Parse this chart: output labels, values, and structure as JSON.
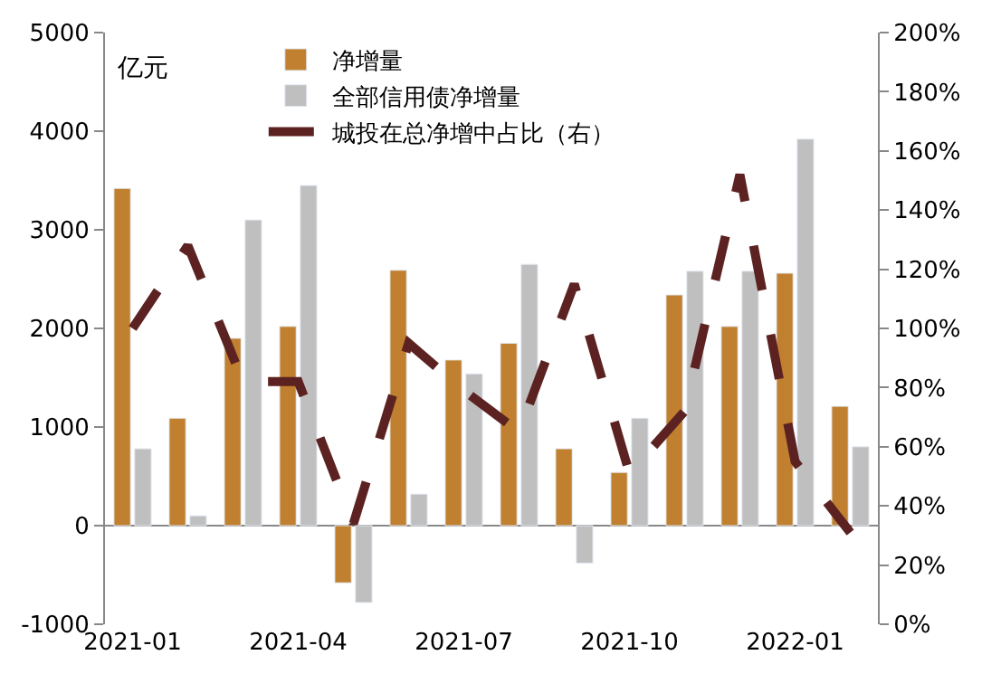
{
  "chart_data": {
    "type": "bar",
    "ylabel": "亿元",
    "categories": [
      "2021-01",
      null,
      null,
      "2021-04",
      null,
      null,
      "2021-07",
      null,
      null,
      "2021-10",
      null,
      null,
      "2022-01",
      null
    ],
    "series": [
      {
        "name": "净增量",
        "color": "#c0802f",
        "values": [
          3420,
          1090,
          1900,
          2020,
          -580,
          2590,
          1680,
          1850,
          780,
          540,
          2340,
          2020,
          2560,
          1210
        ]
      },
      {
        "name": "全部信用债净增量",
        "color": "#bfbfbf",
        "values": [
          780,
          100,
          3100,
          3450,
          -780,
          320,
          1540,
          2650,
          -380,
          1090,
          2580,
          2580,
          3920,
          800
        ]
      },
      {
        "name": "城投在总净增中占比（右）",
        "type": "line",
        "axis": "y2",
        "color": "#5c2221",
        "line_style": "dashed",
        "values": [
          100,
          128,
          82,
          82,
          34,
          95,
          79,
          65,
          115,
          51,
          72,
          152,
          55,
          31
        ]
      }
    ],
    "ylim": [
      -1000,
      5000
    ],
    "yticks": [
      -1000,
      0,
      1000,
      2000,
      3000,
      4000,
      5000
    ],
    "y2lim": [
      0,
      200
    ],
    "y2ticks": [
      {
        "value": 0,
        "label": "0%"
      },
      {
        "value": 20,
        "label": "20%"
      },
      {
        "value": 40,
        "label": "40%"
      },
      {
        "value": 60,
        "label": "60%"
      },
      {
        "value": 80,
        "label": "80%"
      },
      {
        "value": 100,
        "label": "100%"
      },
      {
        "value": 120,
        "label": "120%"
      },
      {
        "value": 140,
        "label": "140%"
      },
      {
        "value": 160,
        "label": "160%"
      },
      {
        "value": 180,
        "label": "180%"
      },
      {
        "value": 200,
        "label": "200%"
      }
    ],
    "legend": "top"
  }
}
